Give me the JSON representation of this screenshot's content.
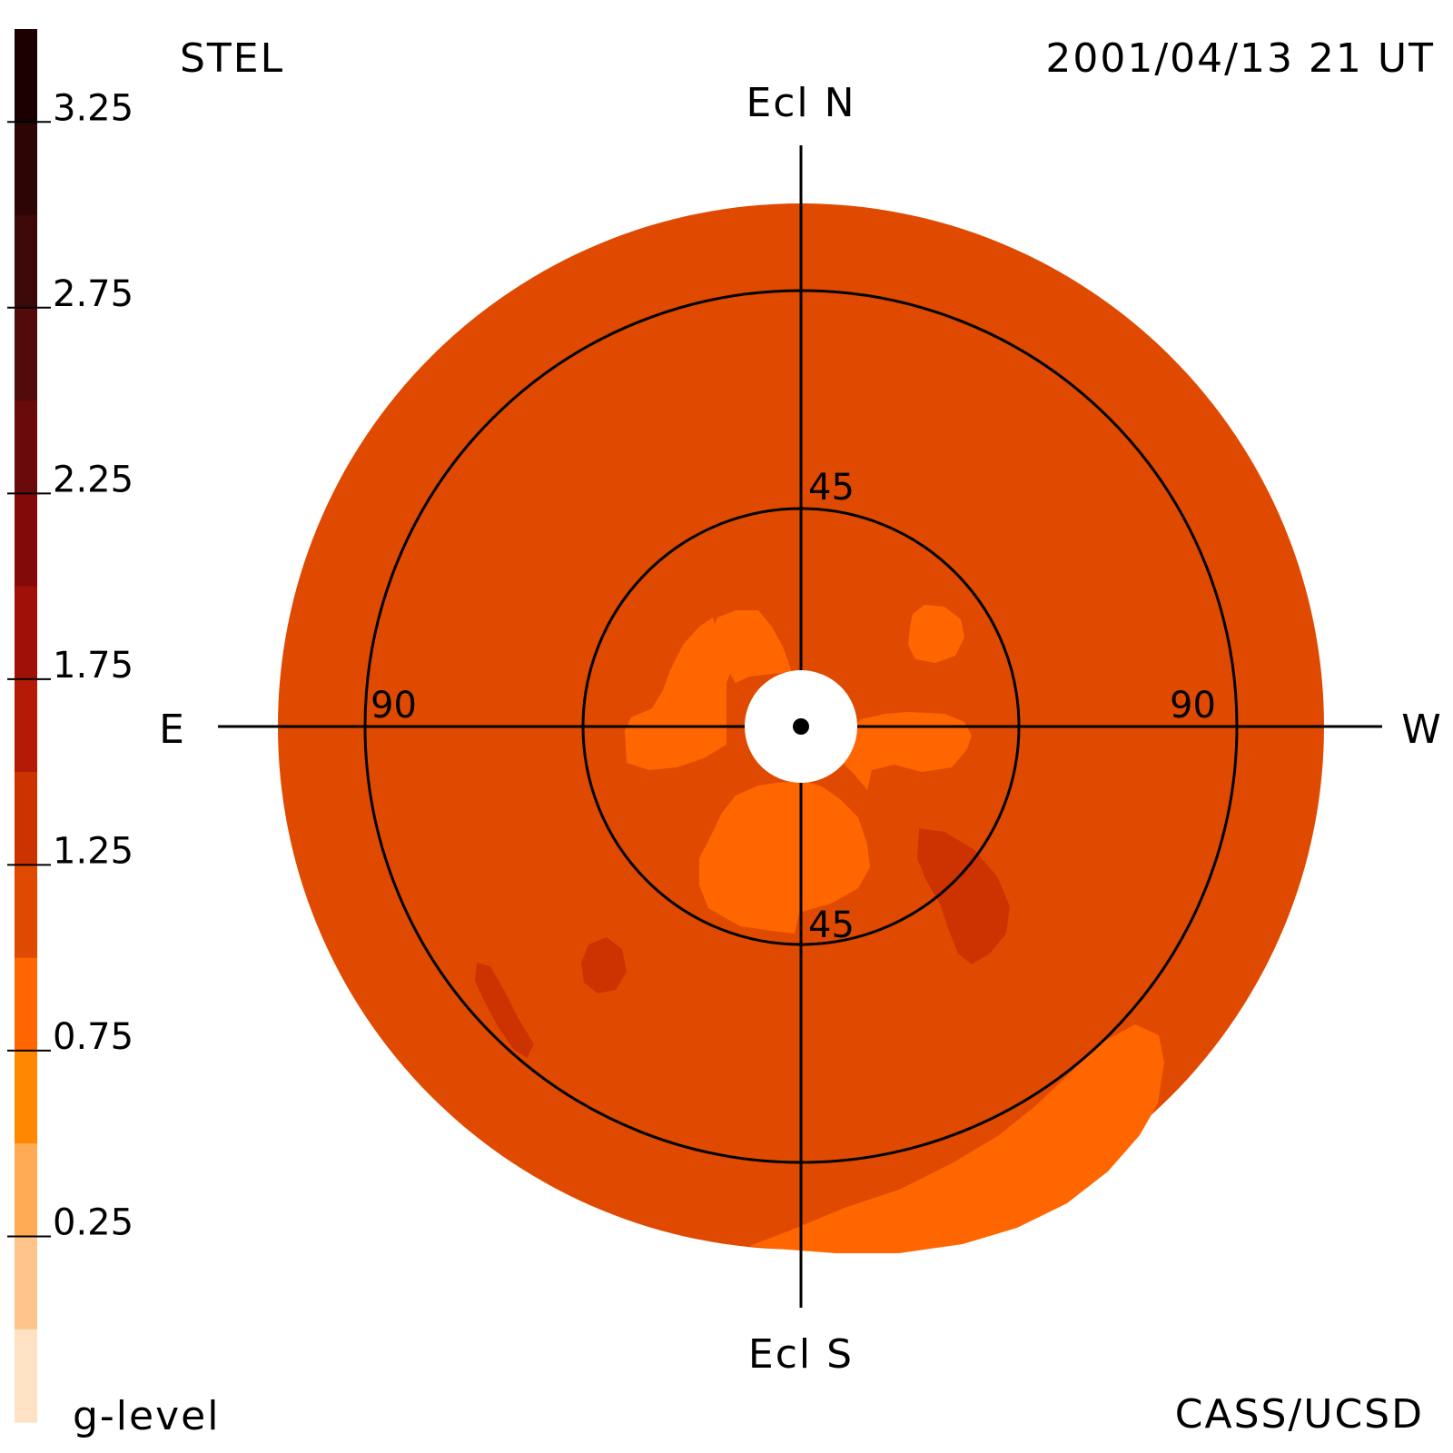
{
  "labels": {
    "instrument": "STEL",
    "timestamp": "2001/04/13 21 UT",
    "credit": "CASS/UCSD",
    "colorbar_title": "g-level",
    "north": "Ecl N",
    "south": "Ecl S",
    "east": "E",
    "west": "W",
    "ring_45_top": "45",
    "ring_45_bottom": "45",
    "ring_90_left": "90",
    "ring_90_right": "90"
  },
  "colorbar": {
    "ticks": [
      {
        "value": 3.25,
        "label": "3.25"
      },
      {
        "value": 2.75,
        "label": "2.75"
      },
      {
        "value": 2.25,
        "label": "2.25"
      },
      {
        "value": 1.75,
        "label": "1.75"
      },
      {
        "value": 1.25,
        "label": "1.25"
      },
      {
        "value": 0.75,
        "label": "0.75"
      },
      {
        "value": 0.25,
        "label": "0.25"
      }
    ],
    "levels": [
      {
        "min": 3.25,
        "max": 3.5,
        "color": "#1a0000"
      },
      {
        "min": 3.0,
        "max": 3.25,
        "color": "#2d0505"
      },
      {
        "min": 2.75,
        "max": 3.0,
        "color": "#3d0808"
      },
      {
        "min": 2.5,
        "max": 2.75,
        "color": "#520a0a"
      },
      {
        "min": 2.25,
        "max": 2.5,
        "color": "#6b0a0a"
      },
      {
        "min": 2.0,
        "max": 2.25,
        "color": "#840a0a"
      },
      {
        "min": 1.75,
        "max": 2.0,
        "color": "#a11008"
      },
      {
        "min": 1.5,
        "max": 1.75,
        "color": "#b51a06"
      },
      {
        "min": 1.25,
        "max": 1.5,
        "color": "#cc3300"
      },
      {
        "min": 1.0,
        "max": 1.25,
        "color": "#e04a00"
      },
      {
        "min": 0.75,
        "max": 1.0,
        "color": "#ff6600"
      },
      {
        "min": 0.5,
        "max": 0.75,
        "color": "#ff8800"
      },
      {
        "min": 0.25,
        "max": 0.5,
        "color": "#ffaa55"
      },
      {
        "min": 0.0,
        "max": 0.25,
        "color": "#ffc48a"
      },
      {
        "min": -0.25,
        "max": 0.0,
        "color": "#ffe2c4"
      }
    ]
  },
  "colors": {
    "background_level": "#e04a00",
    "enhanced_level": "#cc3300",
    "depleted_level": "#ff6600",
    "sun_occulter": "#ffffff",
    "lines": "#000000"
  }
}
